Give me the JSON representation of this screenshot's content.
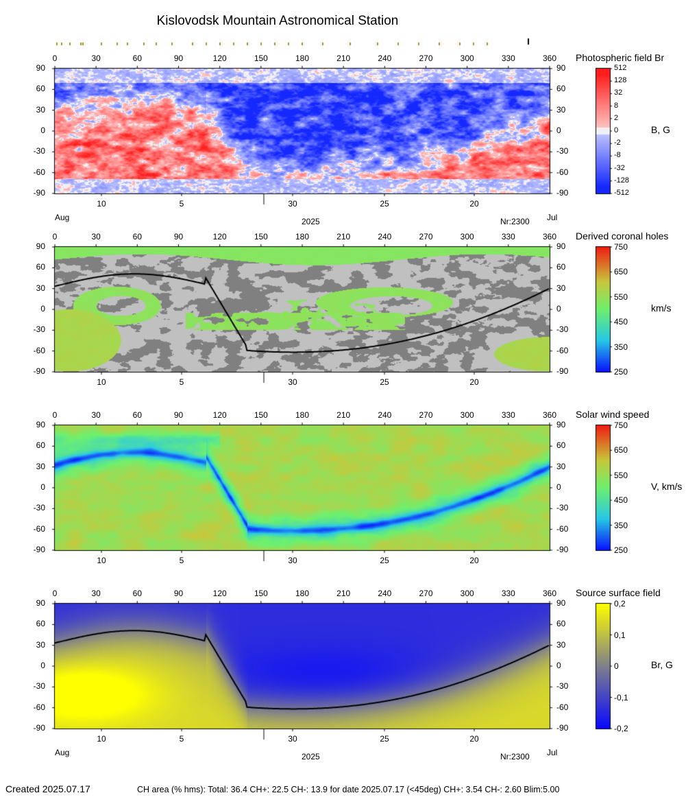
{
  "title": "Kislovodsk Mountain Astronomical Station",
  "footer": {
    "created": "Created  2025.07.17",
    "stats": "CH area (% hms): Total: 36.4 CH+: 22.5   CH-: 13.9 for date 2025.07.17 (<45deg) CH+: 3.54    CH-: 2.60 Blim:5.00"
  },
  "colors": {
    "positive_field": "#ff3030",
    "negative_field": "#2040ff",
    "grid_grey_dark": "#808080",
    "grid_grey_light": "#c0c0c0",
    "neutral_line": "#000000"
  },
  "chart_data": [
    {
      "type": "heatmap",
      "title": "Photospheric field Br",
      "unit_label": "B, G",
      "x_ticks": [
        "0",
        "30",
        "60",
        "90",
        "120",
        "150",
        "180",
        "210",
        "240",
        "270",
        "300",
        "330",
        "360"
      ],
      "y_ticks": [
        "90",
        "60",
        "30",
        "0",
        "-30",
        "-60",
        "-90"
      ],
      "xlim": [
        0,
        360
      ],
      "ylim": [
        -90,
        90
      ],
      "date_ticks": [
        "10",
        "5",
        "30",
        "25",
        "20"
      ],
      "month_left": "Aug",
      "year": "2025",
      "carrington": "Nr:2300",
      "month_right": "Jul",
      "colorbar_ticks": [
        "512",
        "128",
        "32",
        "8",
        "2",
        "0",
        "-2",
        "-8",
        "-32",
        "-128",
        "-512"
      ]
    },
    {
      "type": "heatmap",
      "title": "Derived coronal holes",
      "unit_label": "km/s",
      "x_ticks": [
        "0",
        "30",
        "60",
        "90",
        "120",
        "150",
        "180",
        "210",
        "240",
        "270",
        "300",
        "330",
        "360"
      ],
      "y_ticks": [
        "90",
        "60",
        "30",
        "0",
        "-30",
        "-60",
        "-90"
      ],
      "xlim": [
        0,
        360
      ],
      "ylim": [
        -90,
        90
      ],
      "date_ticks": [
        "10",
        "5",
        "30",
        "25",
        "20"
      ],
      "colorbar_ticks": [
        "750",
        "650",
        "550",
        "450",
        "350",
        "250"
      ]
    },
    {
      "type": "heatmap",
      "title": "Solar wind speed",
      "unit_label": "V, km/s",
      "x_ticks": [
        "0",
        "30",
        "60",
        "90",
        "120",
        "150",
        "180",
        "210",
        "240",
        "270",
        "300",
        "330",
        "360"
      ],
      "y_ticks": [
        "90",
        "60",
        "30",
        "0",
        "-30",
        "-60",
        "-90"
      ],
      "xlim": [
        0,
        360
      ],
      "ylim": [
        -90,
        90
      ],
      "date_ticks": [
        "10",
        "5",
        "30",
        "25",
        "20"
      ],
      "colorbar_ticks": [
        "750",
        "650",
        "550",
        "450",
        "350",
        "250"
      ]
    },
    {
      "type": "heatmap",
      "title": "Source surface field",
      "unit_label": "Br, G",
      "x_ticks": [
        "0",
        "30",
        "60",
        "90",
        "120",
        "150",
        "180",
        "210",
        "240",
        "270",
        "300",
        "330",
        "360"
      ],
      "y_ticks": [
        "90",
        "60",
        "30",
        "0",
        "-30",
        "-60",
        "-90"
      ],
      "xlim": [
        0,
        360
      ],
      "ylim": [
        -90,
        90
      ],
      "date_ticks": [
        "10",
        "5",
        "30",
        "25",
        "20"
      ],
      "month_left": "Aug",
      "year": "2025",
      "carrington": "Nr:2300",
      "month_right": "Jul",
      "colorbar_ticks": [
        "0,2",
        "0,1",
        "0",
        "-0,1",
        "-0,2"
      ]
    }
  ]
}
